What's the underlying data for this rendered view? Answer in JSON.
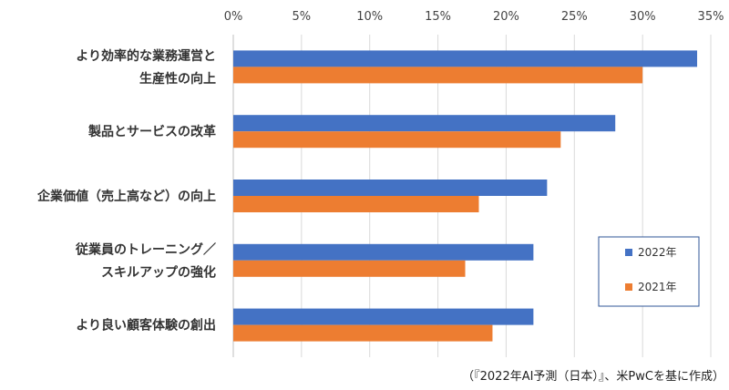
{
  "chart_data": {
    "type": "bar",
    "orientation": "horizontal",
    "x_ticks": [
      "0%",
      "5%",
      "10%",
      "15%",
      "20%",
      "25%",
      "30%",
      "35%"
    ],
    "xlim": [
      0,
      35
    ],
    "x_axis_position": "top",
    "grid": true,
    "categories": [
      [
        "より効率的な業務運営と",
        "生産性の向上"
      ],
      [
        "製品とサービスの改革"
      ],
      [
        "企業価値（売上高など）の向上"
      ],
      [
        "従業員のトレーニング／",
        "スキルアップの強化"
      ],
      [
        "より良い顧客体験の創出"
      ]
    ],
    "series": [
      {
        "name": "2022年",
        "color": "#4472C4",
        "values": [
          34,
          28,
          23,
          22,
          22
        ]
      },
      {
        "name": "2021年",
        "color": "#ED7D31",
        "values": [
          30,
          24,
          18,
          17,
          19
        ]
      }
    ],
    "legend_position": "right",
    "source_note": "（『2022年AI予測（日本）』、米PwCを基に作成）"
  }
}
